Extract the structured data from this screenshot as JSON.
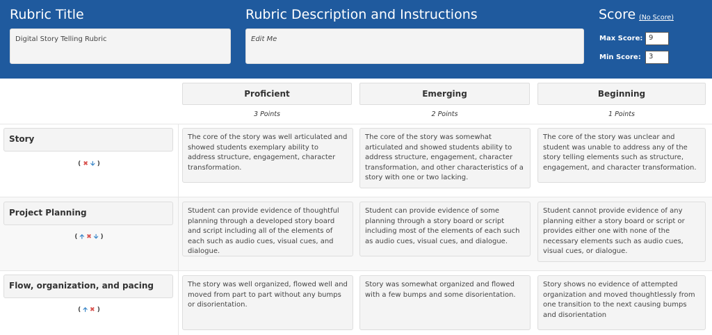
{
  "header": {
    "title_label": "Rubric Title",
    "title_value": "Digital Story Telling Rubric",
    "desc_label": "Rubric Description and Instructions",
    "desc_value": "Edit Me",
    "score_label": "Score",
    "no_score": "(No Score)",
    "max_label": "Max Score:",
    "max_value": "9",
    "min_label": "Min Score:",
    "min_value": "3"
  },
  "levels": [
    {
      "name": "Proficient",
      "points": "3 Points"
    },
    {
      "name": "Emerging",
      "points": "2 Points"
    },
    {
      "name": "Beginning",
      "points": "1 Points"
    }
  ],
  "criteria": [
    {
      "name": "Story",
      "controls": [
        "delete",
        "down"
      ],
      "cells": [
        "The core of the story was well articulated and showed students exemplary ability to address structure, engagement, character transformation.",
        "The core of the story was somewhat articulated and showed students ability to address structure, engagement, character transformation, and other characteristics of a story with one or two lacking.",
        "The core of the story was unclear and student was unable to address any of the story telling elements such as structure, engagement, and character transformation."
      ]
    },
    {
      "name": "Project Planning",
      "controls": [
        "up",
        "delete",
        "down"
      ],
      "cells": [
        "Student can provide evidence of thoughtful planning through a developed story board and script including all of the elements of each such as audio cues, visual cues, and dialogue.",
        "Student can provide evidence of some planning through a story board or script including most of the elements of each such as audio cues, visual cues, and dialogue.",
        "Student cannot provide evidence of any planning either a story board or script or provides either one with none of the necessary elements such as audio cues, visual cues, or dialogue."
      ]
    },
    {
      "name": "Flow, organization, and pacing",
      "controls": [
        "up",
        "delete"
      ],
      "cells": [
        "The story was well organized, flowed well and moved from part to part without any bumps or disorientation.",
        "Story was somewhat organized and flowed with a few bumps and some disorientation.",
        "Story shows no evidence of attempted organization and moved thoughtlessly from one transition to the next causing bumps and disorientation"
      ]
    }
  ],
  "colors": {
    "header_bg": "#1f5a9e",
    "arrow": "#3a86c8",
    "delete": "#d9534f"
  }
}
